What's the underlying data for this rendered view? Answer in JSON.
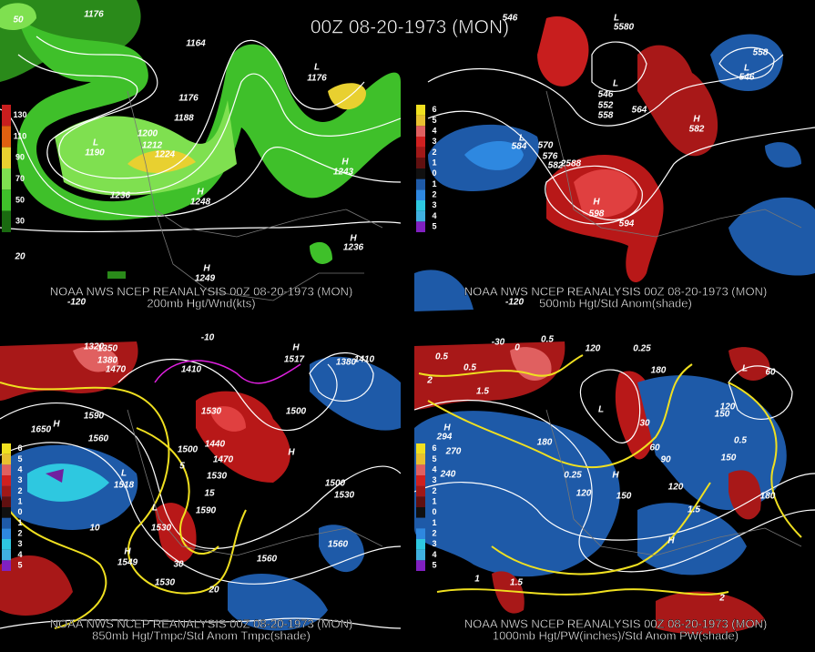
{
  "title": "00Z 08-20-1973 (MON)",
  "panels": [
    {
      "caption_line1": "NOAA NWS NCEP REANALYSIS 00Z 08-20-1973 (MON)",
      "caption_line2": "200mb Hgt/Wnd(kts)",
      "legend": [
        "130",
        "110",
        "90",
        "70",
        "50",
        "30"
      ],
      "contour_labels": [
        "50",
        "1176",
        "1164",
        "L",
        "1176",
        "1176",
        "1188",
        "1200",
        "L",
        "1190",
        "1212",
        "1224",
        "H",
        "1243",
        "H",
        "1248",
        "1236",
        "H",
        "1236",
        "20",
        "H",
        "1249",
        "-120"
      ]
    },
    {
      "caption_line1": "NOAA NWS NCEP REANALYSIS 00Z 08-20-1973 (MON)",
      "caption_line2": "500mb Hgt/Std Anom(shade)",
      "legend": [
        "6",
        "5",
        "4",
        "3",
        "2",
        "1",
        "0",
        "1",
        "2",
        "3",
        "4",
        "5"
      ],
      "contour_labels": [
        "546",
        "5580",
        "L",
        "558",
        "L",
        "546",
        "L",
        "546",
        "552",
        "558",
        "564",
        "H",
        "582",
        "L",
        "584",
        "570",
        "576",
        "582",
        "2588",
        "H",
        "598",
        "594",
        "-120"
      ]
    },
    {
      "caption_line1": "NOAA NWS NCEP REANALYSIS 00Z 08-20-1973 (MON)",
      "caption_line2": "850mb Hgt/Tmpc/Std Anom Tmpc(shade)",
      "legend": [
        "6",
        "5",
        "4",
        "3",
        "2",
        "1",
        "0",
        "1",
        "2",
        "3",
        "4",
        "5"
      ],
      "contour_labels": [
        "1320",
        "1350",
        "1380",
        "1470",
        "-10",
        "1410",
        "H",
        "1517",
        "1380",
        "1410",
        "1590",
        "H",
        "1650",
        "1560",
        "L",
        "1518",
        "1500",
        "1440",
        "1470",
        "1530",
        "1590",
        "1500",
        "1530",
        "H",
        "1500",
        "1530",
        "L",
        "1530",
        "H",
        "1549",
        "1560",
        "1560",
        "1530",
        "10",
        "15",
        "20",
        "30",
        "5"
      ]
    },
    {
      "caption_line1": "NOAA NWS NCEP REANALYSIS 00Z 08-20-1973 (MON)",
      "caption_line2": "1000mb Hgt/PW(inches)/Std Anom PW(shade)",
      "legend": [
        "6",
        "5",
        "4",
        "3",
        "2",
        "1",
        "0",
        "1",
        "2",
        "3",
        "4",
        "5"
      ],
      "contour_labels": [
        "-30",
        "0",
        "0.5",
        "120",
        "0.25",
        "0.5",
        "0.5",
        "2",
        "1.5",
        "180",
        "60",
        "L",
        "120",
        "150",
        "H",
        "294",
        "270",
        "180",
        "240",
        "0.25",
        "H",
        "120",
        "150",
        "60",
        "90",
        "30",
        "120",
        "H",
        "1.5",
        "180",
        "150",
        "0.5",
        "1.5",
        "1",
        "2",
        "L"
      ]
    }
  ]
}
